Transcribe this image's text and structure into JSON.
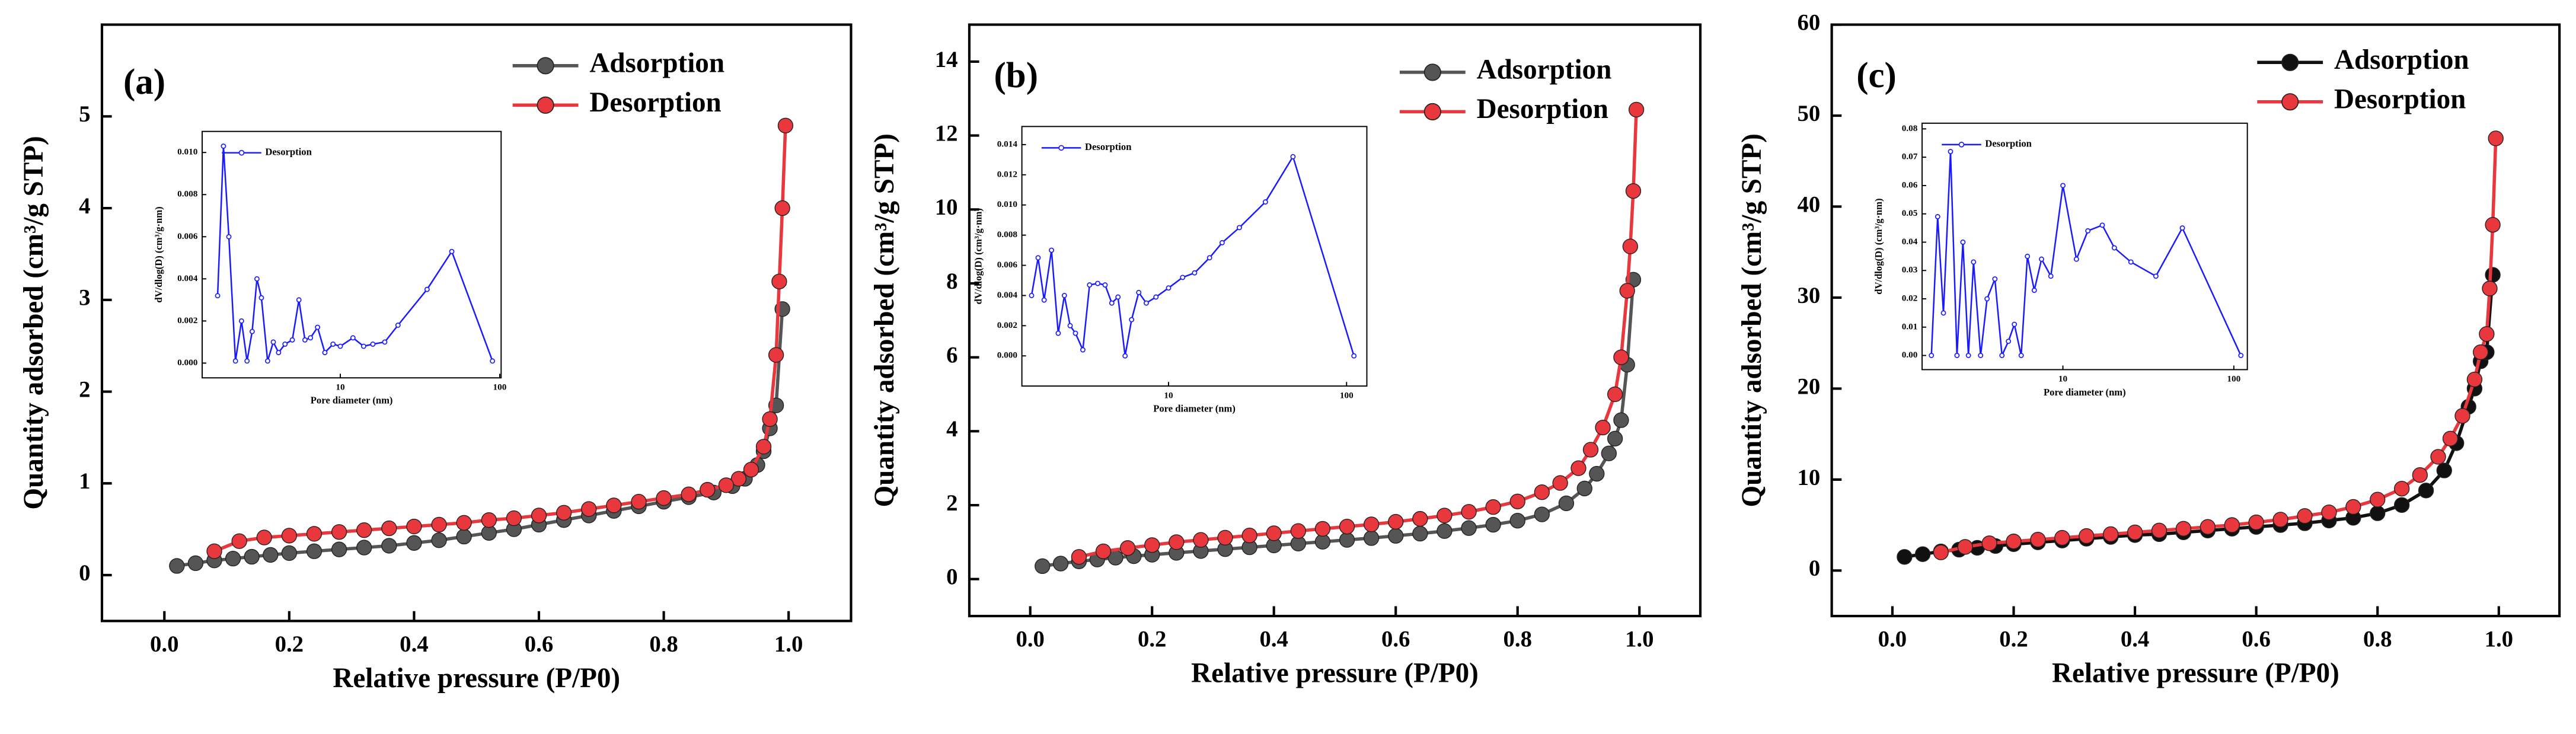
{
  "chart_data": [
    {
      "type": "line",
      "label": "(a)",
      "xlabel": "Relative pressure (P/P0)",
      "ylabel": "Quantity adsorbed (cm³/g STP)",
      "xlim": [
        -0.1,
        1.1
      ],
      "ylim": [
        -0.5,
        6
      ],
      "xticks": [
        {
          "value": 0,
          "label": "0.0"
        },
        0.2,
        0.4,
        0.6,
        0.8,
        {
          "value": 1,
          "label": "1.0"
        }
      ],
      "yticks": [
        0,
        1,
        2,
        3,
        4,
        5
      ],
      "legend": "upper right",
      "series": [
        {
          "name": "Adsorption",
          "color": "#555555",
          "x": [
            0.02,
            0.05,
            0.08,
            0.11,
            0.14,
            0.17,
            0.2,
            0.24,
            0.28,
            0.32,
            0.36,
            0.4,
            0.44,
            0.48,
            0.52,
            0.56,
            0.6,
            0.64,
            0.68,
            0.72,
            0.76,
            0.8,
            0.84,
            0.88,
            0.91,
            0.93,
            0.95,
            0.96,
            0.97,
            0.98,
            0.99
          ],
          "values": [
            0.1,
            0.13,
            0.16,
            0.18,
            0.2,
            0.22,
            0.24,
            0.26,
            0.28,
            0.3,
            0.32,
            0.35,
            0.38,
            0.42,
            0.46,
            0.5,
            0.55,
            0.6,
            0.65,
            0.7,
            0.75,
            0.8,
            0.85,
            0.9,
            0.97,
            1.05,
            1.2,
            1.35,
            1.6,
            1.85,
            2.9
          ]
        },
        {
          "name": "Desorption",
          "color": "#e8383d",
          "x": [
            0.995,
            0.99,
            0.985,
            0.98,
            0.97,
            0.96,
            0.94,
            0.92,
            0.9,
            0.87,
            0.84,
            0.8,
            0.76,
            0.72,
            0.68,
            0.64,
            0.6,
            0.56,
            0.52,
            0.48,
            0.44,
            0.4,
            0.36,
            0.32,
            0.28,
            0.24,
            0.2,
            0.16,
            0.12,
            0.08
          ],
          "values": [
            4.9,
            4.0,
            3.2,
            2.4,
            1.7,
            1.4,
            1.15,
            1.05,
            0.98,
            0.93,
            0.88,
            0.84,
            0.8,
            0.76,
            0.72,
            0.68,
            0.65,
            0.62,
            0.6,
            0.57,
            0.55,
            0.53,
            0.51,
            0.49,
            0.47,
            0.45,
            0.43,
            0.41,
            0.37,
            0.26
          ]
        }
      ],
      "inset": {
        "type": "line",
        "xlabel": "Pore  diameter (nm)",
        "ylabel": "dV/dlog(D) (cm³/g·nm)",
        "xscale": "log",
        "xlim": [
          1.36,
          102
        ],
        "ylim": [
          -0.0007,
          0.011
        ],
        "xticks": [
          10,
          100
        ],
        "yticks": [
          {
            "value": 0,
            "label": "0.000"
          },
          {
            "value": 0.002,
            "label": "0.002"
          },
          {
            "value": 0.004,
            "label": "0.004"
          },
          {
            "value": 0.006,
            "label": "0.006"
          },
          {
            "value": 0.008,
            "label": "0.008"
          },
          {
            "value": 0.01,
            "label": "0.010"
          }
        ],
        "legend": "upper left",
        "series": [
          {
            "name": "Desorption",
            "color": "#1a1aff",
            "x": [
              1.7,
              1.85,
              2.0,
              2.2,
              2.4,
              2.6,
              2.8,
              3.0,
              3.2,
              3.5,
              3.8,
              4.1,
              4.5,
              5.0,
              5.5,
              6.0,
              6.5,
              7.2,
              8,
              9,
              10,
              12,
              14,
              16,
              19,
              23,
              35,
              50,
              90
            ],
            "values": [
              0.0032,
              0.0103,
              0.006,
              0.0001,
              0.002,
              0.0001,
              0.0015,
              0.004,
              0.0031,
              0.0001,
              0.001,
              0.0005,
              0.0009,
              0.0011,
              0.003,
              0.0011,
              0.0012,
              0.0017,
              0.0005,
              0.0009,
              0.0008,
              0.0012,
              0.0008,
              0.0009,
              0.001,
              0.0018,
              0.0035,
              0.0053,
              0.0001
            ]
          }
        ]
      }
    },
    {
      "type": "line",
      "label": "(b)",
      "xlabel": "Relative pressure (P/P0)",
      "ylabel": "Quantity adsorbed (cm³/g STP)",
      "xlim": [
        -0.1,
        1.1
      ],
      "ylim": [
        -1,
        15
      ],
      "xticks": [
        {
          "value": 0,
          "label": "0.0"
        },
        0.2,
        0.4,
        0.6,
        0.8,
        {
          "value": 1,
          "label": "1.0"
        }
      ],
      "yticks": [
        0,
        2,
        4,
        6,
        8,
        10,
        12,
        14
      ],
      "legend": "upper right",
      "series": [
        {
          "name": "Adsorption",
          "color": "#555555",
          "x": [
            0.02,
            0.05,
            0.08,
            0.11,
            0.14,
            0.17,
            0.2,
            0.24,
            0.28,
            0.32,
            0.36,
            0.4,
            0.44,
            0.48,
            0.52,
            0.56,
            0.6,
            0.64,
            0.68,
            0.72,
            0.76,
            0.8,
            0.84,
            0.88,
            0.91,
            0.93,
            0.95,
            0.96,
            0.97,
            0.98,
            0.99
          ],
          "values": [
            0.35,
            0.42,
            0.48,
            0.53,
            0.58,
            0.62,
            0.66,
            0.71,
            0.76,
            0.81,
            0.86,
            0.91,
            0.96,
            1.01,
            1.06,
            1.11,
            1.17,
            1.23,
            1.3,
            1.38,
            1.47,
            1.58,
            1.75,
            2.05,
            2.45,
            2.85,
            3.4,
            3.8,
            4.3,
            5.8,
            8.1
          ]
        },
        {
          "name": "Desorption",
          "color": "#e8383d",
          "x": [
            0.995,
            0.99,
            0.985,
            0.98,
            0.97,
            0.96,
            0.94,
            0.92,
            0.9,
            0.87,
            0.84,
            0.8,
            0.76,
            0.72,
            0.68,
            0.64,
            0.6,
            0.56,
            0.52,
            0.48,
            0.44,
            0.4,
            0.36,
            0.32,
            0.28,
            0.24,
            0.2,
            0.16,
            0.12,
            0.08
          ],
          "values": [
            12.7,
            10.5,
            9.0,
            7.8,
            6.0,
            5.0,
            4.1,
            3.5,
            3.0,
            2.6,
            2.35,
            2.1,
            1.95,
            1.82,
            1.72,
            1.63,
            1.55,
            1.48,
            1.42,
            1.36,
            1.3,
            1.24,
            1.18,
            1.12,
            1.06,
            1.0,
            0.92,
            0.84,
            0.75,
            0.6
          ]
        }
      ],
      "inset": {
        "type": "line",
        "xlabel": "Pore  diameter (nm)",
        "ylabel": "dV/dlog(D) (cm³/g·nm)",
        "xscale": "log",
        "xlim": [
          1.5,
          130
        ],
        "ylim": [
          -0.002,
          0.0152
        ],
        "xticks": [
          10,
          100
        ],
        "yticks": [
          {
            "value": 0,
            "label": "0.000"
          },
          {
            "value": 0.002,
            "label": "0.002"
          },
          {
            "value": 0.004,
            "label": "0.004"
          },
          {
            "value": 0.006,
            "label": "0.006"
          },
          {
            "value": 0.008,
            "label": "0.008"
          },
          {
            "value": 0.01,
            "label": "0.010"
          },
          {
            "value": 0.012,
            "label": "0.012"
          },
          {
            "value": 0.014,
            "label": "0.014"
          }
        ],
        "legend": "upper left",
        "series": [
          {
            "name": "Desorption",
            "color": "#1a1aff",
            "x": [
              1.7,
              1.85,
              2.0,
              2.2,
              2.4,
              2.6,
              2.8,
              3.0,
              3.3,
              3.6,
              4,
              4.4,
              4.8,
              5.2,
              5.7,
              6.2,
              6.8,
              7.5,
              8.5,
              10,
              12,
              14,
              17,
              20,
              25,
              35,
              50,
              110
            ],
            "values": [
              0.004,
              0.0065,
              0.0037,
              0.007,
              0.0015,
              0.004,
              0.002,
              0.0015,
              0.0004,
              0.0047,
              0.0048,
              0.0047,
              0.0035,
              0.0039,
              0.0,
              0.0024,
              0.0042,
              0.0035,
              0.0039,
              0.0045,
              0.0052,
              0.0055,
              0.0065,
              0.0075,
              0.0085,
              0.0102,
              0.0132,
              0.0
            ]
          }
        ]
      }
    },
    {
      "type": "line",
      "label": "(c)",
      "xlabel": "Relative pressure (P/P0)",
      "ylabel": "Quantity adsorbed (cm³/g STP)",
      "xlim": [
        -0.1,
        1.1
      ],
      "ylim": [
        -5,
        60
      ],
      "xticks": [
        {
          "value": 0,
          "label": "0.0"
        },
        0.2,
        0.4,
        0.6,
        0.8,
        {
          "value": 1,
          "label": "1.0"
        }
      ],
      "yticks": [
        0,
        10,
        20,
        30,
        40,
        50,
        60
      ],
      "legend": "upper right",
      "series": [
        {
          "name": "Adsorption",
          "color": "#111111",
          "x": [
            0.02,
            0.05,
            0.08,
            0.11,
            0.14,
            0.17,
            0.2,
            0.24,
            0.28,
            0.32,
            0.36,
            0.4,
            0.44,
            0.48,
            0.52,
            0.56,
            0.6,
            0.64,
            0.68,
            0.72,
            0.76,
            0.8,
            0.84,
            0.88,
            0.91,
            0.93,
            0.95,
            0.96,
            0.97,
            0.98,
            0.99
          ],
          "values": [
            1.5,
            1.8,
            2.1,
            2.3,
            2.5,
            2.7,
            2.9,
            3.1,
            3.3,
            3.5,
            3.7,
            3.9,
            4.0,
            4.2,
            4.4,
            4.6,
            4.8,
            5.0,
            5.2,
            5.5,
            5.8,
            6.3,
            7.2,
            8.8,
            11,
            14,
            18,
            20,
            23,
            24,
            32.5
          ]
        },
        {
          "name": "Desorption",
          "color": "#e8383d",
          "x": [
            0.995,
            0.99,
            0.985,
            0.98,
            0.97,
            0.96,
            0.94,
            0.92,
            0.9,
            0.87,
            0.84,
            0.8,
            0.76,
            0.72,
            0.68,
            0.64,
            0.6,
            0.56,
            0.52,
            0.48,
            0.44,
            0.4,
            0.36,
            0.32,
            0.28,
            0.24,
            0.2,
            0.16,
            0.12,
            0.08
          ],
          "values": [
            47.5,
            38,
            31,
            26,
            24,
            21,
            17,
            14.5,
            12.5,
            10.5,
            9.0,
            7.8,
            7.0,
            6.4,
            6.0,
            5.6,
            5.3,
            5.0,
            4.8,
            4.6,
            4.4,
            4.2,
            4.0,
            3.8,
            3.6,
            3.4,
            3.2,
            3.0,
            2.6,
            2.0
          ]
        }
      ],
      "inset": {
        "type": "line",
        "xlabel": "Pore  diameter (nm)",
        "ylabel": "dV/dlog(D) (cm³/g·nm)",
        "xscale": "log",
        "xlim": [
          1.5,
          120
        ],
        "ylim": [
          -0.005,
          0.082
        ],
        "xticks": [
          10,
          100
        ],
        "yticks": [
          {
            "value": 0,
            "label": "0.00"
          },
          0.01,
          0.02,
          0.03,
          0.04,
          0.05,
          0.06,
          0.07,
          0.08
        ],
        "legend": "upper left",
        "series": [
          {
            "name": "Desorption",
            "color": "#1a1aff",
            "x": [
              1.7,
              1.85,
              2.0,
              2.2,
              2.4,
              2.6,
              2.8,
              3.0,
              3.3,
              3.6,
              4,
              4.4,
              4.8,
              5.2,
              5.7,
              6.2,
              6.8,
              7.5,
              8.5,
              10,
              12,
              14,
              17,
              20,
              25,
              35,
              50,
              110
            ],
            "values": [
              0.0,
              0.049,
              0.015,
              0.072,
              0.0,
              0.04,
              0.0,
              0.033,
              0.0,
              0.02,
              0.027,
              0.0,
              0.005,
              0.011,
              0.0,
              0.035,
              0.023,
              0.034,
              0.028,
              0.06,
              0.034,
              0.044,
              0.046,
              0.038,
              0.033,
              0.028,
              0.045,
              0.0
            ]
          }
        ]
      }
    }
  ]
}
